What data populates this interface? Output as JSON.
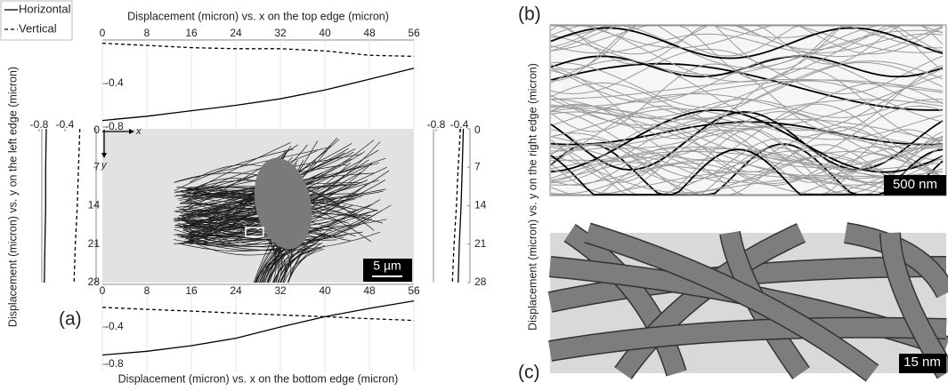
{
  "chart_data": [
    {
      "type": "line",
      "orientation": "horizontal",
      "title": "Displacement (micron) vs. x on the top edge (micron)",
      "x": [
        0,
        8,
        16,
        24,
        32,
        40,
        48,
        56
      ],
      "xlim": [
        0,
        56
      ],
      "xticks": [
        0,
        8,
        16,
        24,
        32,
        40,
        48,
        56
      ],
      "ylim": [
        -0.8,
        0
      ],
      "yticks": [
        -0.4,
        -0.8
      ],
      "grid": true,
      "series": [
        {
          "name": "Horizontal",
          "color": "#000000",
          "dash": "solid",
          "values": [
            -0.74,
            -0.7,
            -0.65,
            -0.6,
            -0.54,
            -0.46,
            -0.36,
            -0.26
          ]
        },
        {
          "name": "Vertical",
          "color": "#000000",
          "dash": "dashed",
          "values": [
            -0.03,
            -0.05,
            -0.07,
            -0.08,
            -0.08,
            -0.1,
            -0.14,
            -0.15
          ]
        }
      ]
    },
    {
      "type": "line",
      "orientation": "horizontal",
      "title": "Displacement (micron) vs. x on the bottom edge (micron)",
      "x": [
        0,
        8,
        16,
        24,
        32,
        40,
        48,
        56
      ],
      "xlim": [
        0,
        56
      ],
      "xticks": [
        0,
        8,
        16,
        24,
        32,
        40,
        48,
        56
      ],
      "ylim": [
        -0.8,
        0
      ],
      "yticks": [
        -0.4,
        -0.8
      ],
      "grid": true,
      "series": [
        {
          "name": "Horizontal",
          "color": "#000000",
          "dash": "solid",
          "values": [
            -0.7,
            -0.66,
            -0.6,
            -0.52,
            -0.4,
            -0.29,
            -0.2,
            -0.12
          ]
        },
        {
          "name": "Vertical",
          "color": "#000000",
          "dash": "dashed",
          "values": [
            -0.19,
            -0.21,
            -0.23,
            -0.25,
            -0.27,
            -0.29,
            -0.31,
            -0.33
          ]
        }
      ]
    },
    {
      "type": "line",
      "orientation": "vertical",
      "title": "Displacement (micron) vs. y on the left edge (micron)",
      "y": [
        0,
        7,
        14,
        21,
        28
      ],
      "ylim": [
        0,
        28
      ],
      "yticks": [
        0,
        7,
        14,
        21,
        28
      ],
      "xlim": [
        -0.8,
        0
      ],
      "xticks": [
        -0.8,
        -0.4
      ],
      "series": [
        {
          "name": "Horizontal",
          "color": "#000000",
          "dash": "solid",
          "values": [
            -0.69,
            -0.7,
            -0.7,
            -0.71,
            -0.72
          ]
        },
        {
          "name": "Vertical",
          "color": "#000000",
          "dash": "dashed",
          "values": [
            -0.17,
            -0.19,
            -0.21,
            -0.24,
            -0.26
          ]
        }
      ]
    },
    {
      "type": "line",
      "orientation": "vertical",
      "title": "Displacement (micron) vs. y on the right edge (micron)",
      "y": [
        0,
        7,
        14,
        21,
        28
      ],
      "ylim": [
        0,
        28
      ],
      "yticks": [
        0,
        7,
        14,
        21,
        28
      ],
      "xlim": [
        -0.8,
        0
      ],
      "xticks": [
        -0.8,
        -0.4
      ],
      "series": [
        {
          "name": "Horizontal",
          "color": "#000000",
          "dash": "solid",
          "values": [
            -0.33,
            -0.35,
            -0.37,
            -0.4,
            -0.42
          ]
        },
        {
          "name": "Vertical",
          "color": "#000000",
          "dash": "dashed",
          "values": [
            -0.38,
            -0.42,
            -0.45,
            -0.49,
            -0.52
          ]
        }
      ]
    }
  ],
  "figure": {
    "panel_a": "(a)",
    "panel_b": "(b)",
    "panel_c": "(c)",
    "axis_x": "x",
    "axis_y": "y",
    "scale_a": "5 µm",
    "scale_b": "500 nm",
    "scale_c": "15 nm"
  }
}
